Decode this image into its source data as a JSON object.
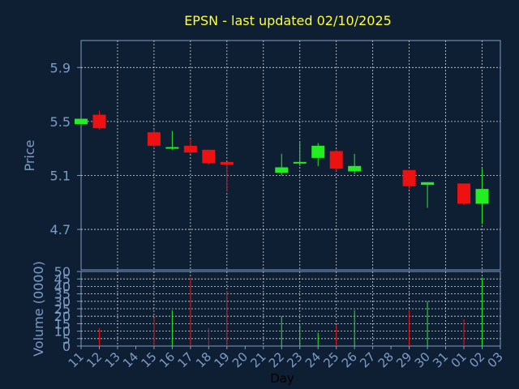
{
  "chart_data": {
    "type": "candlestick",
    "title": "EPSN - last updated 02/10/2025",
    "xlabel": "Day",
    "price_panel": {
      "ylabel": "Price",
      "ylim": [
        4.4,
        6.1
      ],
      "yticks": [
        4.7,
        5.1,
        5.5,
        5.9
      ],
      "ytick_labels": [
        "4.7",
        "5.1",
        "5.5",
        "5.9"
      ],
      "grid": true
    },
    "volume_panel": {
      "ylabel": "Volume (0000)",
      "ylim": [
        0,
        50
      ],
      "yticks": [
        0,
        5,
        10,
        15,
        20,
        25,
        30,
        35,
        40,
        45,
        50
      ],
      "ytick_labels": [
        "0",
        "5",
        "10",
        "15",
        "20",
        "25",
        "30",
        "35",
        "40",
        "45",
        "50"
      ],
      "grid": true
    },
    "x_labels": [
      "11",
      "12",
      "13",
      "14",
      "15",
      "16",
      "17",
      "18",
      "19",
      "20",
      "21",
      "22",
      "23",
      "24",
      "25",
      "26",
      "27",
      "28",
      "29",
      "30",
      "31",
      "01",
      "02",
      "03"
    ],
    "candles": [
      {
        "x": "11",
        "open": 5.48,
        "high": 5.52,
        "low": 5.47,
        "close": 5.52,
        "volume": 0
      },
      {
        "x": "12",
        "open": 5.55,
        "high": 5.58,
        "low": 5.44,
        "close": 5.45,
        "volume": 12
      },
      {
        "x": "15",
        "open": 5.42,
        "high": 5.44,
        "low": 5.3,
        "close": 5.32,
        "volume": 19
      },
      {
        "x": "16",
        "open": 5.3,
        "high": 5.43,
        "low": 5.29,
        "close": 5.31,
        "volume": 24
      },
      {
        "x": "17",
        "open": 5.32,
        "high": 5.37,
        "low": 5.26,
        "close": 5.27,
        "volume": 46
      },
      {
        "x": "18",
        "open": 5.29,
        "high": 5.29,
        "low": 5.18,
        "close": 5.19,
        "volume": 12
      },
      {
        "x": "19",
        "open": 5.2,
        "high": 5.2,
        "low": 4.98,
        "close": 5.18,
        "volume": 37
      },
      {
        "x": "22",
        "open": 5.12,
        "high": 5.26,
        "low": 5.1,
        "close": 5.16,
        "volume": 20
      },
      {
        "x": "23",
        "open": 5.19,
        "high": 5.35,
        "low": 5.17,
        "close": 5.2,
        "volume": 14
      },
      {
        "x": "24",
        "open": 5.23,
        "high": 5.34,
        "low": 5.17,
        "close": 5.32,
        "volume": 9
      },
      {
        "x": "25",
        "open": 5.28,
        "high": 5.29,
        "low": 5.13,
        "close": 5.15,
        "volume": 14
      },
      {
        "x": "26",
        "open": 5.13,
        "high": 5.26,
        "low": 5.11,
        "close": 5.17,
        "volume": 24
      },
      {
        "x": "29",
        "open": 5.14,
        "high": 5.14,
        "low": 5.0,
        "close": 5.02,
        "volume": 24
      },
      {
        "x": "30",
        "open": 5.03,
        "high": 5.05,
        "low": 4.86,
        "close": 5.05,
        "volume": 30
      },
      {
        "x": "01",
        "open": 5.04,
        "high": 5.04,
        "low": 4.88,
        "close": 4.89,
        "volume": 18
      },
      {
        "x": "02",
        "open": 4.89,
        "high": 5.15,
        "low": 4.74,
        "close": 5.0,
        "volume": 46
      }
    ],
    "colors": {
      "background": "#0f1f33",
      "axis": "#7a9cc6",
      "grid": "#cfd8e3",
      "title": "#ffff33",
      "up": "#22ee22",
      "down": "#ee1111",
      "ylabel": "#7a9cc6",
      "xlabel": "#000000"
    }
  }
}
